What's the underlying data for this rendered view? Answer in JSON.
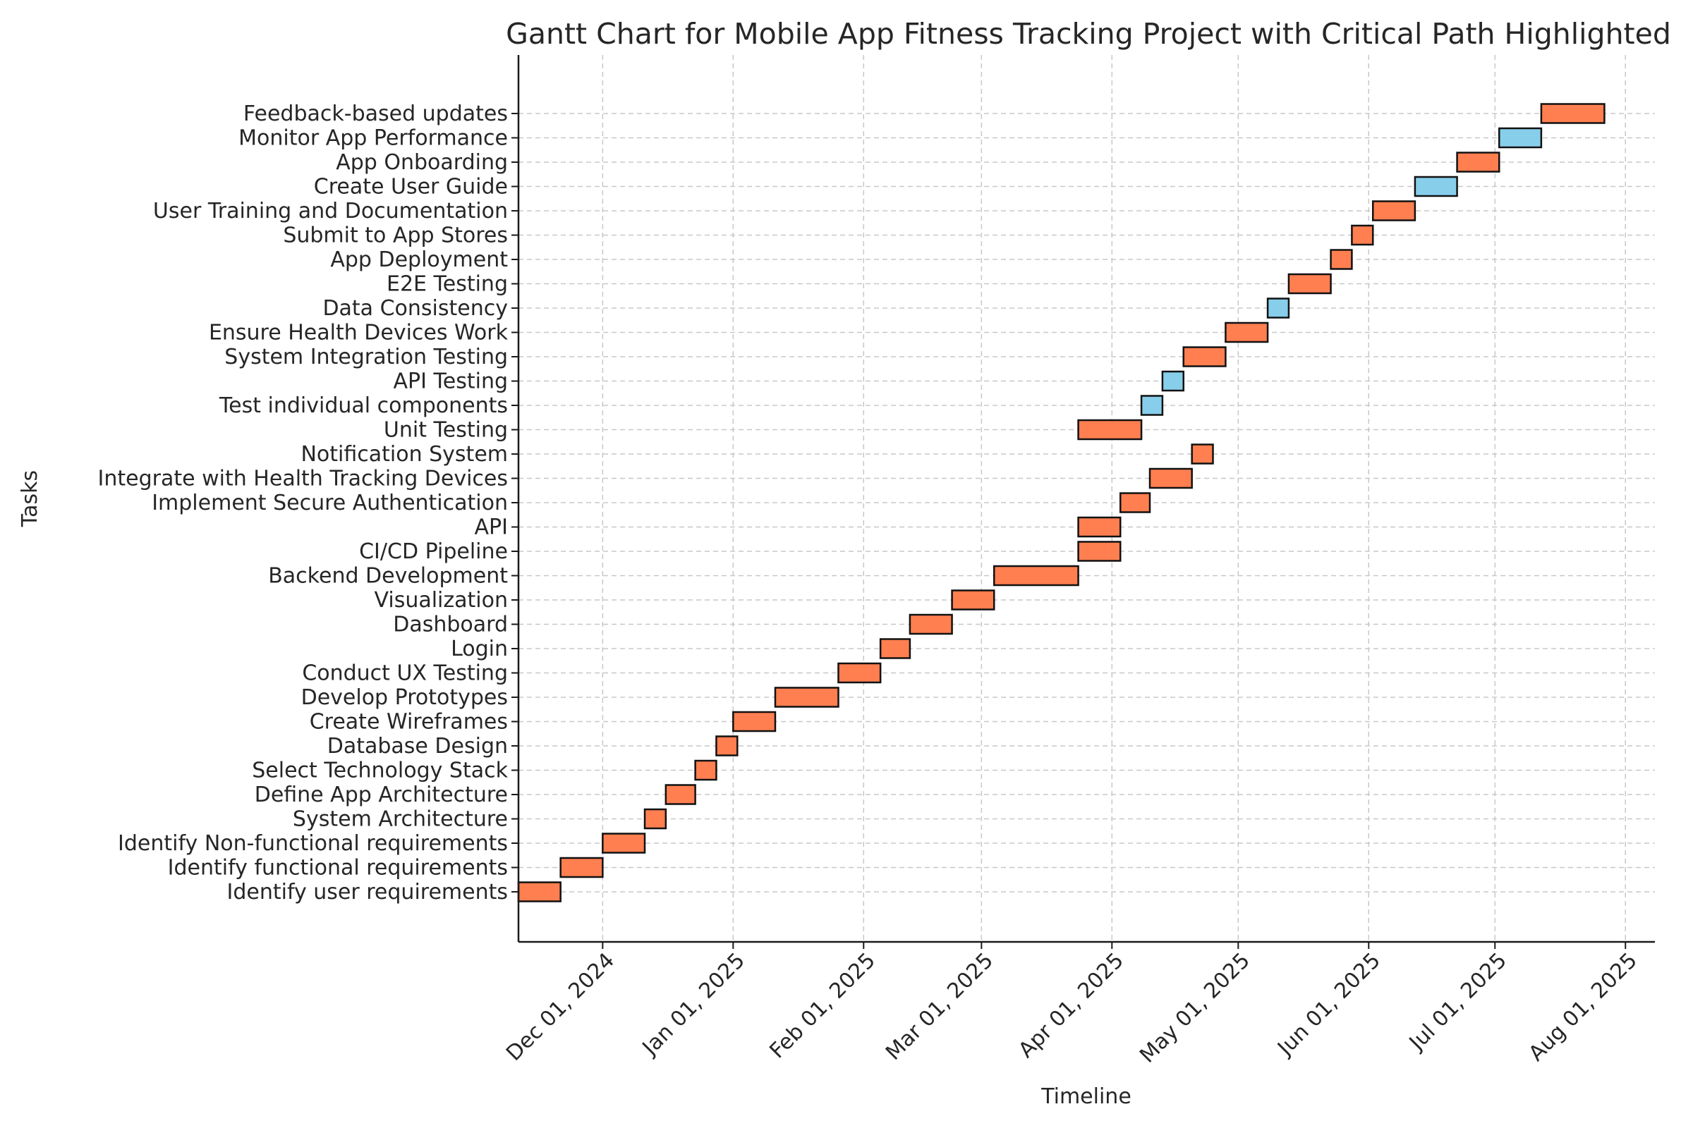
{
  "chart_data": {
    "type": "gantt",
    "title": "Gantt Chart for Mobile App Fitness Tracking Project with Critical Path Highlighted",
    "xlabel": "Timeline",
    "ylabel": "Tasks",
    "xlim": [
      "2024-11-11",
      "2025-08-08"
    ],
    "x_ticks": [
      {
        "date": "2024-12-01",
        "label": "Dec 01, 2024"
      },
      {
        "date": "2025-01-01",
        "label": "Jan 01, 2025"
      },
      {
        "date": "2025-02-01",
        "label": "Feb 01, 2025"
      },
      {
        "date": "2025-03-01",
        "label": "Mar 01, 2025"
      },
      {
        "date": "2025-04-01",
        "label": "Apr 01, 2025"
      },
      {
        "date": "2025-05-01",
        "label": "May 01, 2025"
      },
      {
        "date": "2025-06-01",
        "label": "Jun 01, 2025"
      },
      {
        "date": "2025-07-01",
        "label": "Jul 01, 2025"
      },
      {
        "date": "2025-08-01",
        "label": "Aug 01, 2025"
      }
    ],
    "grid": true,
    "colors": {
      "critical": "#ff7f50",
      "non_critical": "#87ceeb"
    },
    "tasks": [
      {
        "name": "Identify user requirements",
        "start": "2024-11-11",
        "end": "2024-11-21",
        "critical": true
      },
      {
        "name": "Identify functional requirements",
        "start": "2024-11-21",
        "end": "2024-12-01",
        "critical": true
      },
      {
        "name": "Identify Non-functional requirements",
        "start": "2024-12-01",
        "end": "2024-12-11",
        "critical": true
      },
      {
        "name": "System Architecture",
        "start": "2024-12-11",
        "end": "2024-12-16",
        "critical": true
      },
      {
        "name": "Define App Architecture",
        "start": "2024-12-16",
        "end": "2024-12-23",
        "critical": true
      },
      {
        "name": "Select Technology Stack",
        "start": "2024-12-23",
        "end": "2024-12-28",
        "critical": true
      },
      {
        "name": "Database Design",
        "start": "2024-12-28",
        "end": "2025-01-02",
        "critical": true
      },
      {
        "name": "Create Wireframes",
        "start": "2025-01-01",
        "end": "2025-01-11",
        "critical": true
      },
      {
        "name": "Develop Prototypes",
        "start": "2025-01-11",
        "end": "2025-01-26",
        "critical": true
      },
      {
        "name": "Conduct UX Testing",
        "start": "2025-01-26",
        "end": "2025-02-05",
        "critical": true
      },
      {
        "name": "Login",
        "start": "2025-02-05",
        "end": "2025-02-12",
        "critical": true
      },
      {
        "name": "Dashboard",
        "start": "2025-02-12",
        "end": "2025-02-22",
        "critical": true
      },
      {
        "name": "Visualization",
        "start": "2025-02-22",
        "end": "2025-03-04",
        "critical": true
      },
      {
        "name": "Backend Development",
        "start": "2025-03-04",
        "end": "2025-03-24",
        "critical": true
      },
      {
        "name": "CI/CD Pipeline",
        "start": "2025-03-24",
        "end": "2025-04-03",
        "critical": true
      },
      {
        "name": "API",
        "start": "2025-03-24",
        "end": "2025-04-03",
        "critical": true
      },
      {
        "name": "Implement Secure Authentication",
        "start": "2025-04-03",
        "end": "2025-04-10",
        "critical": true
      },
      {
        "name": "Integrate with Health Tracking Devices",
        "start": "2025-04-10",
        "end": "2025-04-20",
        "critical": true
      },
      {
        "name": "Notification System",
        "start": "2025-04-20",
        "end": "2025-04-25",
        "critical": true
      },
      {
        "name": "Unit Testing",
        "start": "2025-03-24",
        "end": "2025-04-08",
        "critical": true
      },
      {
        "name": "Test individual components",
        "start": "2025-04-08",
        "end": "2025-04-13",
        "critical": false
      },
      {
        "name": "API Testing",
        "start": "2025-04-13",
        "end": "2025-04-18",
        "critical": false
      },
      {
        "name": "System Integration Testing",
        "start": "2025-04-18",
        "end": "2025-04-28",
        "critical": true
      },
      {
        "name": "Ensure Health Devices Work",
        "start": "2025-04-28",
        "end": "2025-05-08",
        "critical": true
      },
      {
        "name": "Data Consistency",
        "start": "2025-05-08",
        "end": "2025-05-13",
        "critical": false
      },
      {
        "name": "E2E Testing",
        "start": "2025-05-13",
        "end": "2025-05-23",
        "critical": true
      },
      {
        "name": "App Deployment",
        "start": "2025-05-23",
        "end": "2025-05-28",
        "critical": true
      },
      {
        "name": "Submit to App Stores",
        "start": "2025-05-28",
        "end": "2025-06-02",
        "critical": true
      },
      {
        "name": "User Training and Documentation",
        "start": "2025-06-02",
        "end": "2025-06-12",
        "critical": true
      },
      {
        "name": "Create User Guide",
        "start": "2025-06-12",
        "end": "2025-06-22",
        "critical": false
      },
      {
        "name": "App Onboarding",
        "start": "2025-06-22",
        "end": "2025-07-02",
        "critical": true
      },
      {
        "name": "Monitor App Performance",
        "start": "2025-07-02",
        "end": "2025-07-12",
        "critical": false
      },
      {
        "name": "Feedback-based updates",
        "start": "2025-07-12",
        "end": "2025-07-27",
        "critical": true
      }
    ]
  }
}
